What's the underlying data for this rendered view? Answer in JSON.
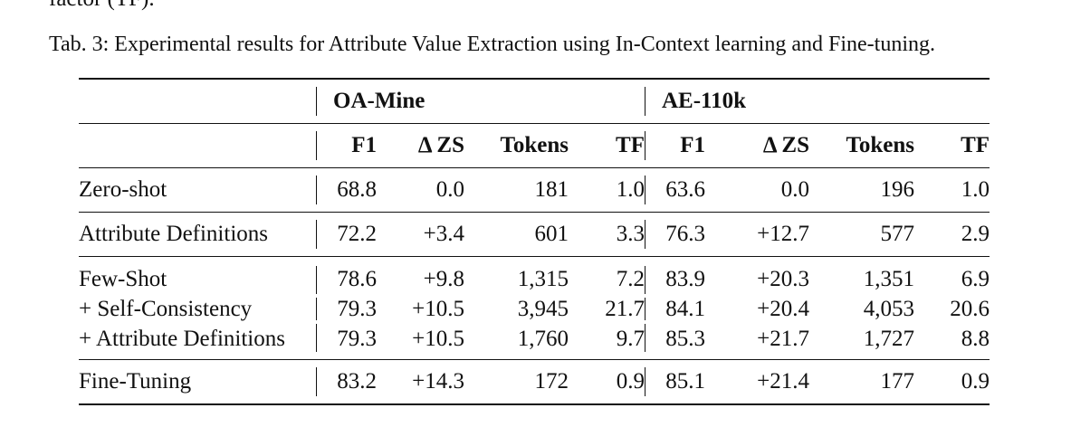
{
  "previous_text": "factor (TF).",
  "caption": "Tab. 3: Experimental results for Attribute Value Extraction using In-Context learning and Fine-tuning.",
  "table": {
    "groups": [
      "OA-Mine",
      "AE-110k"
    ],
    "columns": [
      "F1",
      "Δ ZS",
      "Tokens",
      "TF",
      "F1",
      "Δ ZS",
      "Tokens",
      "TF"
    ],
    "rows": [
      {
        "label": "Zero-shot",
        "values": [
          "68.8",
          "0.0",
          "181",
          "1.0",
          "63.6",
          "0.0",
          "196",
          "1.0"
        ]
      },
      {
        "label": "Attribute Definitions",
        "values": [
          "72.2",
          "+3.4",
          "601",
          "3.3",
          "76.3",
          "+12.7",
          "577",
          "2.9"
        ]
      },
      {
        "label": "Few-Shot",
        "values": [
          "78.6",
          "+9.8",
          "1,315",
          "7.2",
          "83.9",
          "+20.3",
          "1,351",
          "6.9"
        ]
      },
      {
        "label": "+ Self-Consistency",
        "values": [
          "79.3",
          "+10.5",
          "3,945",
          "21.7",
          "84.1",
          "+20.4",
          "4,053",
          "20.6"
        ]
      },
      {
        "label": "+ Attribute Definitions",
        "values": [
          "79.3",
          "+10.5",
          "1,760",
          "9.7",
          "85.3",
          "+21.7",
          "1,727",
          "8.8"
        ]
      },
      {
        "label": "Fine-Tuning",
        "values": [
          "83.2",
          "+14.3",
          "172",
          "0.9",
          "85.1",
          "+21.4",
          "177",
          "0.9"
        ]
      }
    ]
  }
}
